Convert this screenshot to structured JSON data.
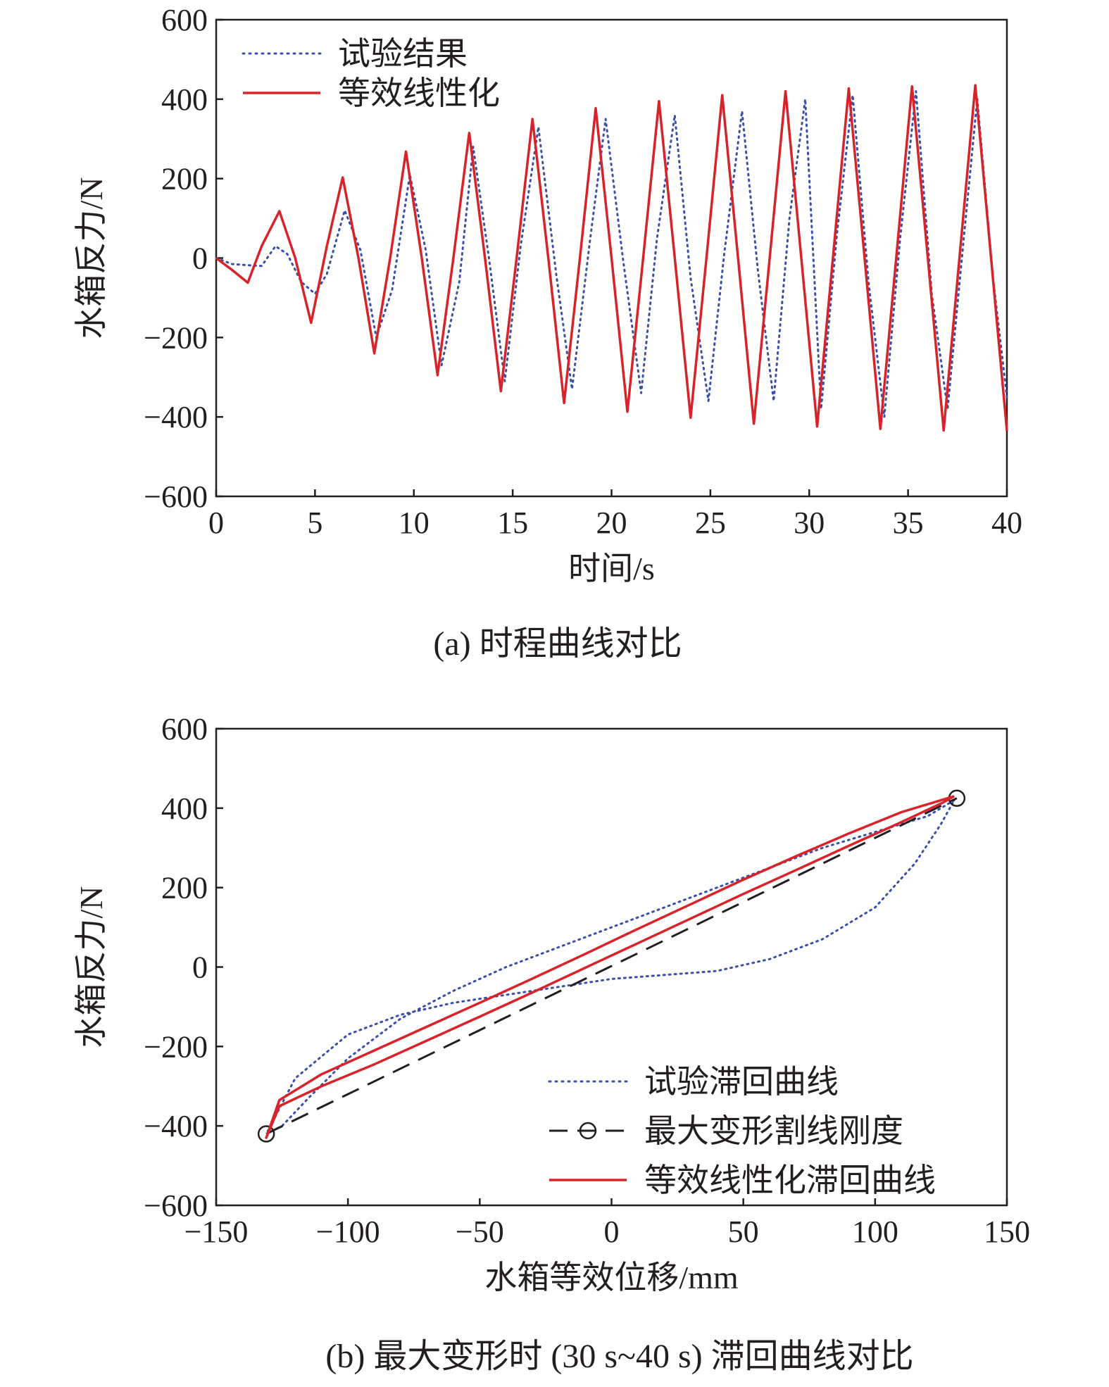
{
  "figure": {
    "caption_a": "(a) 时程曲线对比",
    "caption_b": "(b) 最大变形时 (30 s~40 s) 滞回曲线对比"
  },
  "colors": {
    "experiment": "#3a4fa8",
    "linearized": "#d8232a",
    "secant": "#231f20",
    "axis": "#231f20"
  },
  "chart_data": [
    {
      "id": "a",
      "type": "line",
      "title": "(a) 时程曲线对比",
      "xlabel": "时间/s",
      "ylabel": "水箱反力/N",
      "xlim": [
        0,
        40
      ],
      "ylim": [
        -600,
        600
      ],
      "xticks": [
        0,
        5,
        10,
        15,
        20,
        25,
        30,
        35,
        40
      ],
      "yticks": [
        -600,
        -400,
        -200,
        0,
        200,
        400,
        600
      ],
      "xtick_labels": [
        "0",
        "5",
        "10",
        "15",
        "20",
        "25",
        "30",
        "35",
        "40"
      ],
      "ytick_labels": [
        "−600",
        "−400",
        "−200",
        "0",
        "200",
        "400",
        "600"
      ],
      "legend_position": "top-left",
      "series": [
        {
          "name": "试验结果",
          "style": "dotted",
          "color": "#3a4fa8",
          "x": [
            0.0,
            0.8,
            1.6,
            2.3,
            3.0,
            3.6,
            4.3,
            5.0,
            5.6,
            6.5,
            7.3,
            8.1,
            8.9,
            9.8,
            10.6,
            11.4,
            12.3,
            13.0,
            13.8,
            14.6,
            15.4,
            16.3,
            17.2,
            18.0,
            18.9,
            19.7,
            20.6,
            21.5,
            22.3,
            23.2,
            24.0,
            24.9,
            25.7,
            26.6,
            27.4,
            28.2,
            29.0,
            29.8,
            30.6,
            31.4,
            32.2,
            33.0,
            33.8,
            34.6,
            35.4,
            36.2,
            37.0,
            37.8,
            38.5,
            39.3,
            40.0
          ],
          "y": [
            0,
            -15,
            -18,
            -20,
            30,
            10,
            -60,
            -90,
            -40,
            120,
            20,
            -200,
            -80,
            210,
            20,
            -270,
            -60,
            280,
            0,
            -310,
            30,
            330,
            -40,
            -330,
            40,
            350,
            -10,
            -340,
            50,
            360,
            -50,
            -360,
            10,
            370,
            -30,
            -360,
            100,
            400,
            -380,
            60,
            410,
            -60,
            -400,
            50,
            420,
            -90,
            -380,
            40,
            400,
            -50,
            -350
          ]
        },
        {
          "name": "等效线性化",
          "style": "solid",
          "color": "#d8232a",
          "x": [
            0.0,
            0.8,
            1.6,
            2.3,
            3.2,
            4.0,
            4.8,
            5.6,
            6.4,
            7.2,
            8.0,
            8.8,
            9.6,
            10.4,
            11.2,
            12.0,
            12.8,
            13.6,
            14.4,
            15.2,
            16.0,
            16.8,
            17.6,
            18.4,
            19.2,
            20.0,
            20.8,
            21.6,
            22.4,
            23.2,
            24.0,
            24.8,
            25.6,
            26.4,
            27.2,
            28.0,
            28.8,
            29.6,
            30.4,
            31.2,
            32.0,
            32.8,
            33.6,
            34.4,
            35.2,
            36.0,
            36.8,
            37.6,
            38.4,
            39.2,
            40.0
          ],
          "y": [
            0,
            -30,
            -62,
            30,
            118,
            0,
            -163,
            30,
            203,
            0,
            -240,
            0,
            268,
            0,
            -295,
            0,
            315,
            0,
            -335,
            0,
            350,
            0,
            -365,
            0,
            377,
            0,
            -387,
            0,
            395,
            0,
            -402,
            0,
            410,
            0,
            -417,
            0,
            420,
            0,
            -424,
            0,
            427,
            0,
            -430,
            0,
            432,
            0,
            -434,
            0,
            435,
            0,
            -435
          ]
        }
      ]
    },
    {
      "id": "b",
      "type": "scatter",
      "title": "(b) 最大变形时 (30 s~40 s) 滞回曲线对比",
      "xlabel": "水箱等效位移/mm",
      "ylabel": "水箱反力/N",
      "xlim": [
        -150,
        150
      ],
      "ylim": [
        -600,
        600
      ],
      "xticks": [
        -150,
        -100,
        -50,
        0,
        50,
        100,
        150
      ],
      "yticks": [
        -600,
        -400,
        -200,
        0,
        200,
        400,
        600
      ],
      "xtick_labels": [
        "−150",
        "−100",
        "−50",
        "0",
        "50",
        "100",
        "150"
      ],
      "ytick_labels": [
        "−600",
        "−400",
        "−200",
        "0",
        "200",
        "400",
        "600"
      ],
      "legend_position": "bottom-right",
      "series": [
        {
          "name": "试验滞回曲线",
          "style": "dotted",
          "color": "#3a4fa8",
          "x": [
            130,
            120,
            100,
            80,
            60,
            40,
            20,
            0,
            -20,
            -40,
            -60,
            -80,
            -100,
            -115,
            -125,
            -131,
            -120,
            -100,
            -80,
            -60,
            -40,
            -20,
            0,
            20,
            40,
            60,
            80,
            100,
            115,
            125,
            130
          ],
          "y": [
            420,
            380,
            340,
            300,
            250,
            200,
            150,
            100,
            50,
            0,
            -60,
            -130,
            -230,
            -330,
            -400,
            -420,
            -280,
            -170,
            -120,
            -90,
            -70,
            -50,
            -30,
            -20,
            -10,
            20,
            70,
            150,
            260,
            360,
            420
          ]
        },
        {
          "name": "最大变形割线刚度",
          "style": "dashed-circle-ends",
          "color": "#231f20",
          "x": [
            -131,
            131
          ],
          "y": [
            -420,
            425
          ]
        },
        {
          "name": "等效线性化滞回曲线",
          "style": "solid",
          "color": "#d8232a",
          "x": [
            130,
            110,
            90,
            70,
            50,
            30,
            10,
            -10,
            -30,
            -50,
            -70,
            -90,
            -110,
            -126,
            -131,
            -126,
            -110,
            -90,
            -70,
            -50,
            -30,
            -10,
            10,
            30,
            50,
            70,
            90,
            110,
            126,
            130
          ],
          "y": [
            430,
            390,
            336,
            279,
            220,
            158,
            96,
            33,
            -29,
            -90,
            -150,
            -210,
            -270,
            -335,
            -430,
            -350,
            -300,
            -245,
            -185,
            -125,
            -64,
            -2,
            60,
            122,
            184,
            244,
            305,
            365,
            415,
            430
          ]
        }
      ]
    }
  ]
}
